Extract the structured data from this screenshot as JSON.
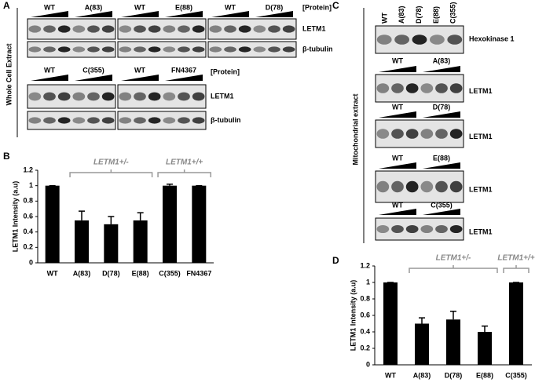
{
  "panel_a": {
    "label": "A",
    "side_label": "Whole Cell Extract",
    "rows": [
      {
        "protein_label": "[Protein]",
        "groups": [
          [
            "WT",
            "A(83)"
          ],
          [
            "WT",
            "E(88)"
          ],
          [
            "WT",
            "D(78)"
          ]
        ],
        "markers": [
          "LETM1",
          "β-tubulin"
        ]
      },
      {
        "protein_label": "[Protein]",
        "groups": [
          [
            "WT",
            "C(355)"
          ],
          [
            "WT",
            "FN4367"
          ]
        ],
        "markers": [
          "LETM1",
          "β-tubulin"
        ]
      }
    ]
  },
  "panel_c": {
    "label": "C",
    "side_label": "Mitochondrial extract",
    "lanes": [
      "WT",
      "A(83)",
      "D(78)",
      "E(88)",
      "C(355)"
    ],
    "top_marker": "Hexokinase 1",
    "blots": [
      {
        "groups": [
          "WT",
          "A(83)"
        ],
        "marker": "LETM1"
      },
      {
        "groups": [
          "WT",
          "D(78)"
        ],
        "marker": "LETM1"
      },
      {
        "groups": [
          "WT",
          "E(88)"
        ],
        "marker": "LETM1"
      },
      {
        "groups": [
          "WT",
          "C(355)"
        ],
        "marker": "LETM1"
      }
    ]
  },
  "chart_data": [
    {
      "type": "bar",
      "label": "B",
      "ylabel": "LETM1 Intensity (a.u)",
      "categories": [
        "WT",
        "A(83)",
        "D(78)",
        "E(88)",
        "C(355)",
        "FN4367"
      ],
      "values": [
        1,
        0.55,
        0.5,
        0.55,
        1,
        1
      ],
      "errors": [
        0,
        0.12,
        0.1,
        0.1,
        0.02,
        0
      ],
      "color": "#000000",
      "ylim": [
        0,
        1.2
      ],
      "yticks": [
        0,
        0.2,
        0.4,
        0.6,
        0.8,
        1,
        1.2
      ],
      "annotations": [
        "LETM1+/-",
        "LETM1+/+"
      ]
    },
    {
      "type": "bar",
      "label": "D",
      "ylabel": "LETM1 Intensity (a.u)",
      "categories": [
        "WT",
        "A(83)",
        "D(78)",
        "E(88)",
        "C(355)"
      ],
      "values": [
        1,
        0.5,
        0.55,
        0.4,
        1
      ],
      "errors": [
        0,
        0.07,
        0.1,
        0.07,
        0
      ],
      "color": "#000000",
      "ylim": [
        0,
        1.2
      ],
      "yticks": [
        0,
        0.2,
        0.4,
        0.6,
        0.8,
        1,
        1.2
      ],
      "annotations": [
        "LETM1+/-",
        "LETM1+/+"
      ]
    }
  ]
}
